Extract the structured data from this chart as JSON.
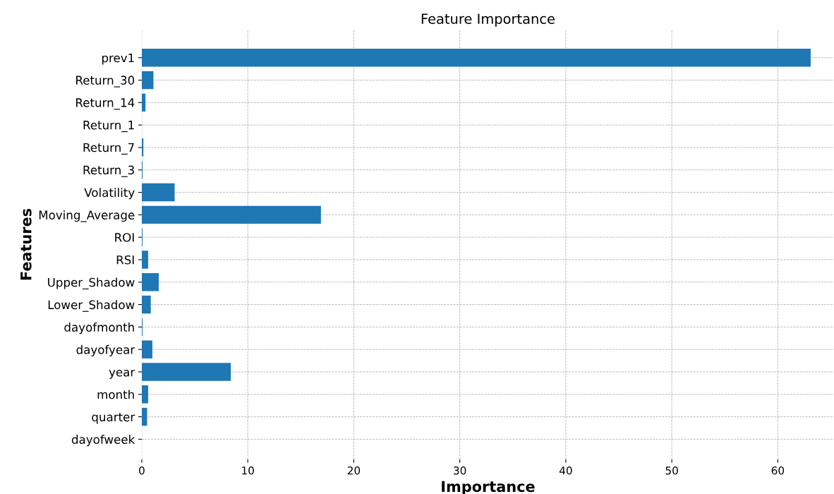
{
  "chart_data": {
    "type": "bar",
    "orientation": "horizontal",
    "title": "Feature Importance",
    "xlabel": "Importance",
    "ylabel": "Features",
    "categories": [
      "prev1",
      "Return_30",
      "Return_14",
      "Return_1",
      "Return_7",
      "Return_3",
      "Volatility",
      "Moving_Average",
      "ROI",
      "RSI",
      "Upper_Shadow",
      "Lower_Shadow",
      "dayofmonth",
      "dayofyear",
      "year",
      "month",
      "quarter",
      "dayofweek"
    ],
    "values": [
      63.1,
      1.1,
      0.35,
      0,
      0.15,
      0.07,
      3.1,
      16.9,
      0.07,
      0.6,
      1.6,
      0.85,
      0.07,
      1.0,
      8.4,
      0.6,
      0.5,
      0
    ],
    "color": "#1f77b4",
    "xlim": [
      0,
      65.3
    ],
    "xticks": [
      0,
      10,
      20,
      30,
      40,
      50,
      60
    ],
    "grid": true
  }
}
